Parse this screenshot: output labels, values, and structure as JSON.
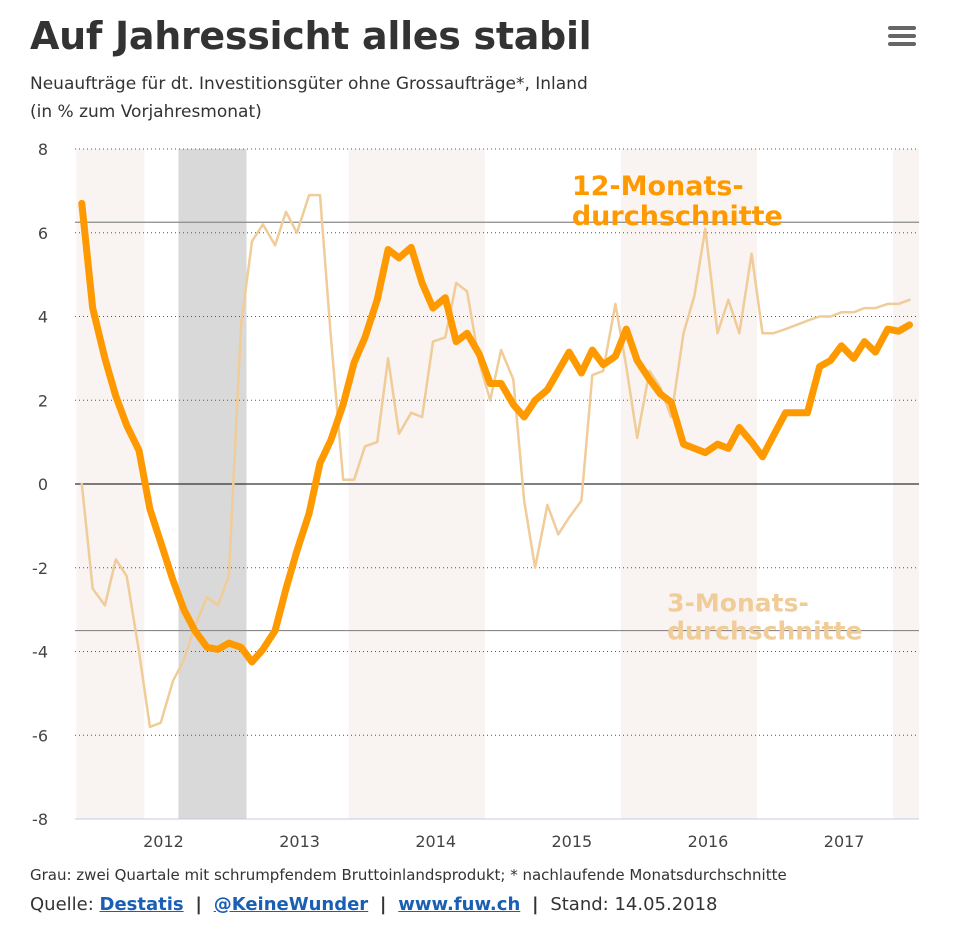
{
  "header": {
    "title": "Auf Jahressicht alles stabil",
    "subtitle_line1": "Neuaufträge für dt. Investitionsgüter ohne Grossaufträge*, Inland",
    "subtitle_line2": "(in % zum Vorjahresmonat)"
  },
  "menu_icon": "hamburger-menu-icon",
  "footer": {
    "note": "Grau: zwei Quartale mit schrumpfendem Bruttoinlandsprodukt; * nachlaufende Monatsdurchschnitte",
    "source_label": "Quelle:",
    "link1": "Destatis",
    "link2": "@KeineWunder",
    "link3": "www.fuw.ch",
    "stand": "Stand: 14.05.2018",
    "sep": "|"
  },
  "chart_data": {
    "type": "line",
    "ylim": [
      -8,
      8
    ],
    "yticks": [
      "8",
      "6",
      "4",
      "2",
      "0",
      "-2",
      "-4",
      "-6",
      "-8"
    ],
    "ytick_values": [
      8,
      6,
      4,
      2,
      0,
      -2,
      -4,
      -6,
      -8
    ],
    "xlim": [
      2011.45,
      2017.65
    ],
    "xticks": [
      "2012",
      "2013",
      "2014",
      "2015",
      "2016",
      "2017"
    ],
    "xtick_values": [
      2012.1,
      2013.1,
      2014.1,
      2015.1,
      2016.1,
      2017.1
    ],
    "colors": {
      "series12": "#FF9900",
      "series3": "#F0CC99",
      "band_light": "#F9F3F2",
      "band_gray": "#D9D9D9",
      "refline": "#8A8A8A",
      "zero": "#333333"
    },
    "bands_light": [
      [
        2011.46,
        2011.96
      ],
      [
        2013.46,
        2014.46
      ],
      [
        2015.46,
        2016.46
      ],
      [
        2017.46,
        2017.65
      ]
    ],
    "bands_gray": [
      [
        2012.21,
        2012.71
      ]
    ],
    "reflines": [
      6.25,
      -3.5
    ],
    "annotations": [
      {
        "text_line1": "12-Monats-",
        "text_line2": "durchschnitte",
        "x": 2015.1,
        "y": 6.9,
        "series": "series12"
      },
      {
        "text_line1": "3-Monats-",
        "text_line2": "durchschnitte",
        "x": 2015.8,
        "y": -3.05,
        "series": "series3"
      }
    ],
    "series": [
      {
        "key": "series12",
        "x": [
          2011.5,
          2011.58,
          2011.67,
          2011.75,
          2011.83,
          2011.92,
          2012.0,
          2012.08,
          2012.17,
          2012.25,
          2012.33,
          2012.42,
          2012.5,
          2012.58,
          2012.67,
          2012.75,
          2012.83,
          2012.92,
          2013.0,
          2013.08,
          2013.17,
          2013.25,
          2013.33,
          2013.42,
          2013.5,
          2013.58,
          2013.67,
          2013.75,
          2013.83,
          2013.92,
          2014.0,
          2014.08,
          2014.17,
          2014.25,
          2014.33,
          2014.42,
          2014.5,
          2014.58,
          2014.67,
          2014.75,
          2014.83,
          2014.92,
          2015.0,
          2015.08,
          2015.17,
          2015.25,
          2015.33,
          2015.42,
          2015.5,
          2015.58,
          2015.67,
          2015.75,
          2015.83,
          2015.92,
          2016.0,
          2016.08,
          2016.17,
          2016.25,
          2016.33,
          2016.42,
          2016.5,
          2016.58,
          2016.67,
          2016.75,
          2016.83,
          2016.92,
          2017.0,
          2017.08,
          2017.17,
          2017.25,
          2017.33,
          2017.42,
          2017.5,
          2017.58
        ],
        "values": [
          6.7,
          4.2,
          3.0,
          2.1,
          1.4,
          0.8,
          -0.6,
          -1.4,
          -2.3,
          -3.0,
          -3.5,
          -3.9,
          -3.95,
          -3.8,
          -3.9,
          -4.25,
          -3.95,
          -3.5,
          -2.5,
          -1.6,
          -0.7,
          0.5,
          1.05,
          1.9,
          2.9,
          3.5,
          4.4,
          5.6,
          5.4,
          5.65,
          4.8,
          4.2,
          4.45,
          3.4,
          3.6,
          3.1,
          2.4,
          2.4,
          1.9,
          1.6,
          2.0,
          2.25,
          2.7,
          3.15,
          2.65,
          3.2,
          2.85,
          3.05,
          3.7,
          2.95,
          2.5,
          2.15,
          1.95,
          0.95,
          0.85,
          0.75,
          0.95,
          0.85,
          1.35,
          1.0,
          0.65,
          1.15,
          1.7,
          1.7,
          1.7,
          2.8,
          2.95,
          3.3,
          3.0,
          3.4,
          3.15,
          3.7,
          3.65,
          3.8
        ]
      },
      {
        "key": "series3",
        "x": [
          2011.5,
          2011.58,
          2011.67,
          2011.75,
          2011.83,
          2011.92,
          2012.0,
          2012.08,
          2012.17,
          2012.25,
          2012.33,
          2012.42,
          2012.5,
          2012.58,
          2012.67,
          2012.75,
          2012.83,
          2012.92,
          2013.0,
          2013.08,
          2013.17,
          2013.25,
          2013.33,
          2013.42,
          2013.5,
          2013.58,
          2013.67,
          2013.75,
          2013.83,
          2013.92,
          2014.0,
          2014.08,
          2014.17,
          2014.25,
          2014.33,
          2014.42,
          2014.5,
          2014.58,
          2014.67,
          2014.75,
          2014.83,
          2014.92,
          2015.0,
          2015.08,
          2015.17,
          2015.25,
          2015.33,
          2015.42,
          2015.5,
          2015.58,
          2015.67,
          2015.75,
          2015.83,
          2015.92,
          2016.0,
          2016.08,
          2016.17,
          2016.25,
          2016.33,
          2016.42,
          2016.5,
          2016.58,
          2016.67,
          2016.75,
          2016.83,
          2016.92,
          2017.0,
          2017.08,
          2017.17,
          2017.25,
          2017.33,
          2017.42,
          2017.5,
          2017.58
        ],
        "values": [
          0.0,
          -2.5,
          -2.9,
          -1.8,
          -2.2,
          -4.0,
          -5.8,
          -5.7,
          -4.7,
          -4.2,
          -3.4,
          -2.7,
          -2.9,
          -2.2,
          3.8,
          5.8,
          6.2,
          5.7,
          6.5,
          6.0,
          6.9,
          6.9,
          3.5,
          0.1,
          0.1,
          0.9,
          1.0,
          3.0,
          1.2,
          1.7,
          1.6,
          3.4,
          3.5,
          4.8,
          4.6,
          2.9,
          2.0,
          3.2,
          2.5,
          -0.4,
          -2.0,
          -0.5,
          -1.2,
          -0.8,
          -0.4,
          2.6,
          2.7,
          4.3,
          2.8,
          1.1,
          2.7,
          2.3,
          1.6,
          3.6,
          4.5,
          6.1,
          3.6,
          4.4,
          3.6,
          5.5,
          3.6,
          3.6,
          3.7,
          3.8,
          3.9,
          4.0,
          4.0,
          4.1,
          4.1,
          4.2,
          4.2,
          4.3,
          4.3,
          4.4
        ]
      }
    ]
  }
}
